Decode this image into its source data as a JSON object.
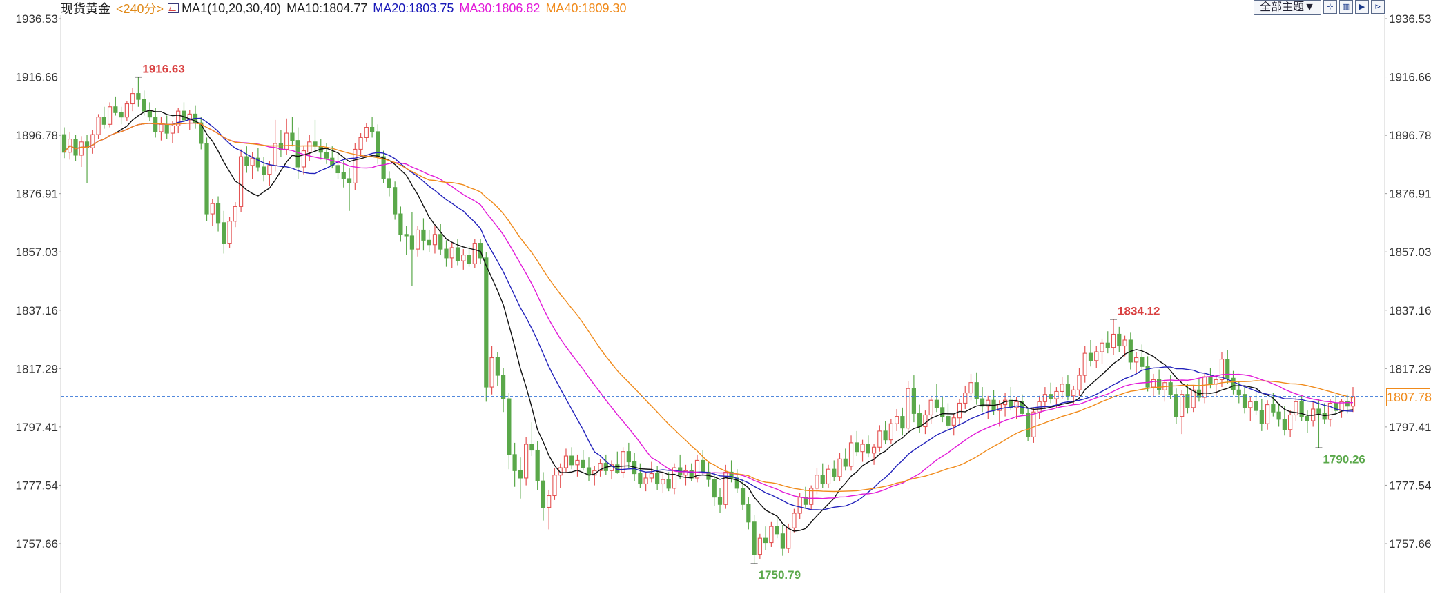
{
  "header": {
    "title": "现货黄金",
    "period": "<240分>",
    "ma_label": "MA1(10,20,30,40)",
    "ma10": "MA10:1804.77",
    "ma20": "MA20:1803.75",
    "ma30": "MA30:1806.82",
    "ma40": "MA40:1809.30"
  },
  "toolbar": {
    "theme_label": "全部主题▼",
    "buttons": [
      "⊹",
      "▥",
      "▶",
      "⊳"
    ]
  },
  "current_price_label": "1807.78",
  "colors": {
    "up": "#e45353",
    "down": "#5aa84a",
    "ma10": "#111111",
    "ma20": "#2222bb",
    "ma30": "#e21ad8",
    "ma40": "#f08a1a",
    "current_line": "#3a78d8",
    "axis_text": "#333333",
    "high_marker": "#d94040",
    "low_marker": "#5aa84a"
  },
  "chart_data": {
    "type": "candlestick",
    "title": "现货黄金",
    "xlabel": "",
    "ylabel": "",
    "ylim": [
      1740.5,
      1942.5
    ],
    "yticks": [
      "1936.53",
      "1916.66",
      "1896.78",
      "1876.91",
      "1857.03",
      "1837.16",
      "1817.29",
      "1797.41",
      "1777.54",
      "1757.66"
    ],
    "current_price": 1807.78,
    "annotations": [
      {
        "text": "1916.63",
        "value": 1916.63,
        "type": "high"
      },
      {
        "text": "1750.79",
        "value": 1750.79,
        "type": "low"
      },
      {
        "text": "1834.12",
        "value": 1834.12,
        "type": "high"
      },
      {
        "text": "1790.26",
        "value": 1790.26,
        "type": "low"
      }
    ],
    "candles": [
      [
        1897.0,
        1899.5,
        1889.0,
        1891.0
      ],
      [
        1891.0,
        1898.0,
        1888.5,
        1895.5
      ],
      [
        1895.5,
        1897.0,
        1888.0,
        1890.0
      ],
      [
        1890.0,
        1896.5,
        1886.0,
        1894.5
      ],
      [
        1894.5,
        1897.0,
        1880.5,
        1892.5
      ],
      [
        1892.5,
        1898.5,
        1890.5,
        1897.0
      ],
      [
        1897.0,
        1904.0,
        1895.5,
        1903.0
      ],
      [
        1903.0,
        1906.5,
        1899.0,
        1900.5
      ],
      [
        1900.5,
        1908.0,
        1899.5,
        1906.5
      ],
      [
        1906.5,
        1910.0,
        1903.5,
        1904.5
      ],
      [
        1904.5,
        1906.5,
        1900.5,
        1903.0
      ],
      [
        1903.0,
        1908.5,
        1901.5,
        1907.5
      ],
      [
        1907.5,
        1913.0,
        1905.0,
        1911.0
      ],
      [
        1911.0,
        1916.63,
        1906.5,
        1909.0
      ],
      [
        1909.0,
        1912.0,
        1903.5,
        1905.0
      ],
      [
        1905.0,
        1908.0,
        1901.5,
        1903.0
      ],
      [
        1903.0,
        1906.0,
        1896.0,
        1898.0
      ],
      [
        1898.0,
        1903.0,
        1895.0,
        1900.5
      ],
      [
        1900.5,
        1903.5,
        1895.5,
        1897.5
      ],
      [
        1897.5,
        1901.5,
        1894.0,
        1900.0
      ],
      [
        1900.0,
        1906.0,
        1897.5,
        1905.0
      ],
      [
        1905.0,
        1908.0,
        1901.5,
        1902.0
      ],
      [
        1902.0,
        1905.5,
        1898.5,
        1904.0
      ],
      [
        1904.0,
        1907.0,
        1899.0,
        1901.0
      ],
      [
        1901.0,
        1903.0,
        1892.0,
        1894.0
      ],
      [
        1894.0,
        1896.0,
        1867.5,
        1870.0
      ],
      [
        1870.0,
        1875.0,
        1866.0,
        1873.5
      ],
      [
        1873.5,
        1876.0,
        1864.0,
        1867.0
      ],
      [
        1867.0,
        1871.0,
        1856.5,
        1860.0
      ],
      [
        1860.0,
        1869.0,
        1858.5,
        1867.5
      ],
      [
        1867.5,
        1874.0,
        1865.5,
        1872.5
      ],
      [
        1872.5,
        1892.0,
        1870.5,
        1889.5
      ],
      [
        1889.5,
        1893.0,
        1884.0,
        1886.5
      ],
      [
        1886.5,
        1891.0,
        1882.0,
        1889.0
      ],
      [
        1889.0,
        1892.5,
        1884.5,
        1886.0
      ],
      [
        1886.0,
        1889.5,
        1881.0,
        1883.5
      ],
      [
        1883.5,
        1888.0,
        1879.5,
        1886.5
      ],
      [
        1886.5,
        1902.0,
        1884.5,
        1894.0
      ],
      [
        1894.0,
        1898.5,
        1889.5,
        1892.0
      ],
      [
        1892.0,
        1902.5,
        1890.0,
        1897.5
      ],
      [
        1897.5,
        1903.0,
        1893.0,
        1895.0
      ],
      [
        1895.0,
        1899.5,
        1882.0,
        1886.0
      ],
      [
        1886.0,
        1893.0,
        1883.5,
        1891.5
      ],
      [
        1891.0,
        1897.0,
        1888.0,
        1894.5
      ],
      [
        1894.5,
        1902.0,
        1891.5,
        1893.0
      ],
      [
        1893.0,
        1895.5,
        1888.5,
        1891.0
      ],
      [
        1891.0,
        1894.0,
        1887.0,
        1889.0
      ],
      [
        1889.0,
        1893.0,
        1885.5,
        1886.5
      ],
      [
        1886.5,
        1891.0,
        1882.0,
        1884.0
      ],
      [
        1884.0,
        1888.0,
        1879.0,
        1882.0
      ],
      [
        1882.0,
        1885.5,
        1871.0,
        1880.5
      ],
      [
        1880.5,
        1894.0,
        1878.0,
        1892.0
      ],
      [
        1892.0,
        1897.5,
        1889.5,
        1896.0
      ],
      [
        1896.0,
        1901.0,
        1894.5,
        1899.5
      ],
      [
        1899.5,
        1903.0,
        1896.0,
        1898.0
      ],
      [
        1898.0,
        1900.5,
        1887.0,
        1889.5
      ],
      [
        1889.5,
        1891.5,
        1880.5,
        1882.0
      ],
      [
        1882.0,
        1884.5,
        1876.0,
        1879.0
      ],
      [
        1879.0,
        1881.0,
        1868.0,
        1870.0
      ],
      [
        1870.0,
        1872.5,
        1860.5,
        1863.0
      ],
      [
        1863.0,
        1866.0,
        1856.0,
        1862.5
      ],
      [
        1862.5,
        1870.5,
        1845.5,
        1858.0
      ],
      [
        1858.0,
        1866.0,
        1855.5,
        1864.5
      ],
      [
        1864.5,
        1868.5,
        1857.5,
        1861.0
      ],
      [
        1861.0,
        1864.5,
        1857.0,
        1859.5
      ],
      [
        1859.5,
        1866.0,
        1856.5,
        1863.0
      ],
      [
        1863.0,
        1866.5,
        1856.0,
        1858.0
      ],
      [
        1858.0,
        1861.0,
        1852.0,
        1855.0
      ],
      [
        1855.0,
        1860.5,
        1851.5,
        1858.5
      ],
      [
        1858.5,
        1861.5,
        1852.5,
        1854.0
      ],
      [
        1854.0,
        1858.0,
        1851.0,
        1856.0
      ],
      [
        1856.0,
        1859.0,
        1852.0,
        1853.0
      ],
      [
        1853.0,
        1861.5,
        1851.5,
        1860.0
      ],
      [
        1860.0,
        1861.5,
        1853.0,
        1855.0
      ],
      [
        1855.0,
        1857.0,
        1806.0,
        1811.0
      ],
      [
        1811.0,
        1825.0,
        1808.5,
        1821.0
      ],
      [
        1821.0,
        1823.0,
        1811.5,
        1815.0
      ],
      [
        1815.0,
        1817.5,
        1802.5,
        1807.0
      ],
      [
        1807.0,
        1809.0,
        1783.0,
        1788.0
      ],
      [
        1788.0,
        1792.0,
        1777.0,
        1782.5
      ],
      [
        1782.5,
        1787.0,
        1773.0,
        1780.0
      ],
      [
        1780.0,
        1794.0,
        1777.5,
        1791.5
      ],
      [
        1791.5,
        1799.0,
        1787.5,
        1789.5
      ],
      [
        1789.5,
        1792.5,
        1776.0,
        1779.0
      ],
      [
        1779.0,
        1782.0,
        1765.5,
        1770.0
      ],
      [
        1770.0,
        1776.0,
        1762.5,
        1774.0
      ],
      [
        1774.0,
        1783.5,
        1772.5,
        1781.0
      ],
      [
        1781.0,
        1785.0,
        1776.5,
        1783.5
      ],
      [
        1783.5,
        1790.0,
        1782.0,
        1787.5
      ],
      [
        1787.5,
        1790.5,
        1783.0,
        1784.5
      ],
      [
        1784.5,
        1788.0,
        1780.5,
        1786.0
      ],
      [
        1786.0,
        1789.5,
        1782.5,
        1783.5
      ],
      [
        1783.5,
        1787.0,
        1779.0,
        1781.0
      ],
      [
        1781.0,
        1784.0,
        1777.5,
        1782.5
      ],
      [
        1782.5,
        1786.5,
        1780.5,
        1785.0
      ],
      [
        1785.0,
        1788.0,
        1781.0,
        1782.5
      ],
      [
        1782.5,
        1786.0,
        1779.5,
        1784.5
      ],
      [
        1784.5,
        1789.0,
        1781.5,
        1782.0
      ],
      [
        1782.0,
        1790.5,
        1780.0,
        1789.0
      ],
      [
        1789.0,
        1792.0,
        1783.5,
        1785.5
      ],
      [
        1785.5,
        1788.5,
        1779.0,
        1781.5
      ],
      [
        1781.5,
        1785.0,
        1776.5,
        1778.0
      ],
      [
        1778.0,
        1782.0,
        1775.5,
        1780.0
      ],
      [
        1780.0,
        1785.5,
        1778.5,
        1781.5
      ],
      [
        1781.5,
        1784.0,
        1776.0,
        1778.0
      ],
      [
        1778.0,
        1781.5,
        1775.0,
        1779.5
      ],
      [
        1779.5,
        1782.0,
        1775.5,
        1776.5
      ],
      [
        1776.5,
        1785.0,
        1774.5,
        1783.5
      ],
      [
        1783.5,
        1788.0,
        1779.5,
        1781.0
      ],
      [
        1781.0,
        1784.5,
        1777.5,
        1782.5
      ],
      [
        1782.5,
        1785.0,
        1779.0,
        1780.0
      ],
      [
        1780.0,
        1788.0,
        1778.5,
        1786.0
      ],
      [
        1786.0,
        1789.5,
        1781.0,
        1782.0
      ],
      [
        1782.0,
        1785.5,
        1777.0,
        1779.5
      ],
      [
        1779.5,
        1782.0,
        1770.5,
        1773.5
      ],
      [
        1773.5,
        1776.5,
        1768.0,
        1771.0
      ],
      [
        1771.0,
        1784.5,
        1769.5,
        1782.0
      ],
      [
        1782.0,
        1786.0,
        1778.5,
        1780.0
      ],
      [
        1780.0,
        1783.0,
        1775.0,
        1776.5
      ],
      [
        1776.5,
        1779.5,
        1769.0,
        1771.0
      ],
      [
        1771.0,
        1773.5,
        1762.5,
        1765.0
      ],
      [
        1765.0,
        1767.5,
        1750.79,
        1754.0
      ],
      [
        1754.0,
        1761.0,
        1752.5,
        1759.5
      ],
      [
        1759.5,
        1763.5,
        1755.5,
        1758.0
      ],
      [
        1758.0,
        1765.0,
        1756.5,
        1763.5
      ],
      [
        1763.5,
        1766.5,
        1759.5,
        1761.0
      ],
      [
        1761.0,
        1764.0,
        1753.5,
        1756.0
      ],
      [
        1756.0,
        1764.5,
        1754.5,
        1763.0
      ],
      [
        1763.0,
        1769.5,
        1761.5,
        1768.0
      ],
      [
        1768.0,
        1775.0,
        1766.0,
        1773.5
      ],
      [
        1773.5,
        1777.0,
        1769.5,
        1771.0
      ],
      [
        1771.0,
        1777.5,
        1769.0,
        1776.5
      ],
      [
        1776.5,
        1783.5,
        1774.5,
        1781.0
      ],
      [
        1781.0,
        1785.0,
        1776.5,
        1778.0
      ],
      [
        1778.0,
        1784.5,
        1776.5,
        1783.0
      ],
      [
        1783.0,
        1786.0,
        1779.0,
        1780.5
      ],
      [
        1780.5,
        1788.5,
        1779.0,
        1786.5
      ],
      [
        1786.5,
        1790.0,
        1782.5,
        1784.0
      ],
      [
        1784.0,
        1794.5,
        1782.5,
        1792.0
      ],
      [
        1792.0,
        1796.0,
        1787.5,
        1789.0
      ],
      [
        1789.0,
        1793.0,
        1785.5,
        1791.5
      ],
      [
        1791.5,
        1794.5,
        1787.0,
        1788.5
      ],
      [
        1788.5,
        1791.5,
        1784.5,
        1790.5
      ],
      [
        1790.5,
        1798.0,
        1789.0,
        1796.0
      ],
      [
        1796.0,
        1799.5,
        1791.5,
        1793.0
      ],
      [
        1793.0,
        1800.0,
        1791.5,
        1798.5
      ],
      [
        1798.5,
        1803.5,
        1796.0,
        1801.0
      ],
      [
        1801.0,
        1804.0,
        1794.5,
        1797.0
      ],
      [
        1797.0,
        1813.0,
        1795.5,
        1810.5
      ],
      [
        1810.5,
        1815.0,
        1799.0,
        1802.0
      ],
      [
        1802.0,
        1805.0,
        1795.5,
        1797.5
      ],
      [
        1797.5,
        1803.0,
        1795.0,
        1801.5
      ],
      [
        1801.5,
        1808.0,
        1798.5,
        1806.5
      ],
      [
        1806.5,
        1812.0,
        1802.5,
        1804.0
      ],
      [
        1804.0,
        1807.5,
        1799.0,
        1801.0
      ],
      [
        1801.0,
        1805.5,
        1796.0,
        1798.0
      ],
      [
        1798.0,
        1802.0,
        1794.5,
        1800.5
      ],
      [
        1800.5,
        1807.0,
        1798.5,
        1805.5
      ],
      [
        1805.5,
        1811.5,
        1803.5,
        1809.0
      ],
      [
        1809.0,
        1815.5,
        1806.5,
        1812.5
      ],
      [
        1812.5,
        1816.0,
        1805.0,
        1807.0
      ],
      [
        1807.0,
        1811.0,
        1802.5,
        1804.5
      ],
      [
        1804.5,
        1808.0,
        1800.0,
        1806.5
      ],
      [
        1806.5,
        1810.0,
        1801.5,
        1803.0
      ],
      [
        1803.0,
        1806.5,
        1797.5,
        1805.0
      ],
      [
        1805.0,
        1809.0,
        1801.0,
        1806.5
      ],
      [
        1806.5,
        1811.0,
        1803.0,
        1804.0
      ],
      [
        1804.0,
        1807.5,
        1800.0,
        1806.0
      ],
      [
        1806.0,
        1808.5,
        1801.5,
        1802.0
      ],
      [
        1802.0,
        1804.0,
        1792.5,
        1794.0
      ],
      [
        1794.0,
        1804.0,
        1792.0,
        1802.5
      ],
      [
        1802.5,
        1808.0,
        1800.0,
        1806.0
      ],
      [
        1806.0,
        1811.0,
        1803.5,
        1808.5
      ],
      [
        1808.5,
        1812.5,
        1805.5,
        1807.0
      ],
      [
        1807.0,
        1811.0,
        1804.0,
        1809.5
      ],
      [
        1809.5,
        1814.5,
        1807.0,
        1812.0
      ],
      [
        1812.0,
        1815.0,
        1806.5,
        1808.0
      ],
      [
        1808.0,
        1811.5,
        1805.0,
        1810.0
      ],
      [
        1810.0,
        1817.5,
        1808.0,
        1815.0
      ],
      [
        1815.0,
        1825.0,
        1812.5,
        1822.5
      ],
      [
        1822.5,
        1827.0,
        1818.0,
        1820.0
      ],
      [
        1820.0,
        1825.0,
        1817.5,
        1823.0
      ],
      [
        1823.0,
        1827.5,
        1819.0,
        1826.0
      ],
      [
        1826.0,
        1830.0,
        1822.5,
        1824.5
      ],
      [
        1824.5,
        1834.12,
        1822.0,
        1829.0
      ],
      [
        1829.0,
        1831.5,
        1823.0,
        1825.0
      ],
      [
        1825.0,
        1828.5,
        1821.5,
        1827.0
      ],
      [
        1827.0,
        1829.5,
        1817.0,
        1819.5
      ],
      [
        1819.5,
        1823.0,
        1815.5,
        1821.0
      ],
      [
        1821.0,
        1825.5,
        1816.5,
        1818.0
      ],
      [
        1818.0,
        1821.5,
        1809.5,
        1811.0
      ],
      [
        1811.0,
        1815.5,
        1807.5,
        1813.5
      ],
      [
        1813.5,
        1817.0,
        1808.5,
        1810.0
      ],
      [
        1810.0,
        1813.5,
        1806.0,
        1812.5
      ],
      [
        1812.5,
        1815.0,
        1807.0,
        1808.5
      ],
      [
        1808.5,
        1810.5,
        1798.5,
        1801.0
      ],
      [
        1801.0,
        1810.0,
        1795.0,
        1808.5
      ],
      [
        1808.5,
        1812.0,
        1802.0,
        1804.0
      ],
      [
        1804.0,
        1811.5,
        1802.5,
        1810.0
      ],
      [
        1810.0,
        1814.0,
        1806.0,
        1807.5
      ],
      [
        1807.5,
        1816.0,
        1805.5,
        1814.5
      ],
      [
        1814.5,
        1817.5,
        1810.5,
        1812.0
      ],
      [
        1812.0,
        1815.0,
        1808.0,
        1813.5
      ],
      [
        1813.5,
        1823.0,
        1811.0,
        1820.5
      ],
      [
        1820.5,
        1823.5,
        1812.0,
        1814.0
      ],
      [
        1814.0,
        1816.5,
        1808.5,
        1810.0
      ],
      [
        1810.0,
        1813.0,
        1805.5,
        1808.5
      ],
      [
        1808.5,
        1811.5,
        1802.0,
        1804.0
      ],
      [
        1804.0,
        1807.5,
        1799.5,
        1806.0
      ],
      [
        1806.0,
        1809.5,
        1801.5,
        1803.0
      ],
      [
        1803.0,
        1807.0,
        1796.0,
        1798.5
      ],
      [
        1798.5,
        1806.5,
        1796.5,
        1805.0
      ],
      [
        1805.0,
        1809.0,
        1801.0,
        1802.5
      ],
      [
        1802.5,
        1805.5,
        1797.5,
        1800.0
      ],
      [
        1800.0,
        1804.5,
        1794.5,
        1796.5
      ],
      [
        1796.5,
        1803.0,
        1794.0,
        1801.5
      ],
      [
        1801.5,
        1807.5,
        1799.5,
        1806.0
      ],
      [
        1806.0,
        1808.0,
        1799.5,
        1801.0
      ],
      [
        1801.0,
        1803.0,
        1795.5,
        1799.5
      ],
      [
        1799.5,
        1806.0,
        1797.5,
        1803.5
      ],
      [
        1803.5,
        1807.0,
        1790.26,
        1802.0
      ],
      [
        1802.0,
        1805.5,
        1798.5,
        1800.0
      ],
      [
        1800.0,
        1807.0,
        1797.5,
        1805.5
      ],
      [
        1805.5,
        1808.5,
        1801.5,
        1803.0
      ],
      [
        1803.0,
        1807.0,
        1800.5,
        1806.0
      ],
      [
        1806.0,
        1808.5,
        1802.0,
        1804.5
      ],
      [
        1804.5,
        1811.0,
        1802.5,
        1807.78
      ]
    ]
  }
}
